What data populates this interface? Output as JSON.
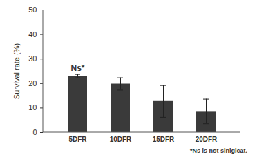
{
  "chart_data": {
    "type": "bar",
    "categories": [
      "5DFR",
      "10DFR",
      "15DFR",
      "20DFR"
    ],
    "values": [
      23.0,
      19.8,
      12.7,
      8.6
    ],
    "errors": [
      0.7,
      2.5,
      6.5,
      5.0
    ],
    "color": "#3a3a3a",
    "y_label": "Survival rate (%)",
    "ylim": [
      0,
      50
    ],
    "yticks": [
      0,
      10,
      20,
      30,
      40,
      50
    ],
    "grid": false,
    "annotations": [
      {
        "category": "5DFR",
        "text": "Ns*"
      }
    ],
    "caption": "*Ns is not sinigicat."
  }
}
